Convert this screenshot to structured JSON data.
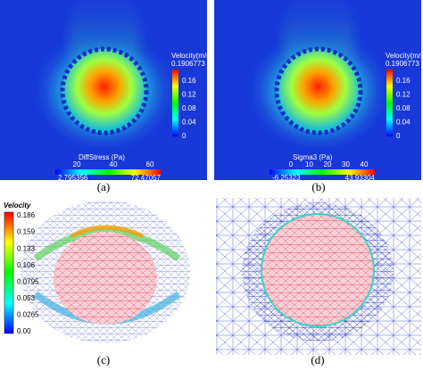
{
  "panels": [
    {
      "label": "(a)",
      "velocity_bar": {
        "title": "Velocity(m/s)",
        "max": "0.1906773",
        "ticks": [
          "0.16",
          "0.12",
          "0.08",
          "0.04",
          "0"
        ]
      },
      "stress_bar": {
        "title": "DiffStress (Pa)",
        "ticks": [
          "20",
          "40",
          "60"
        ],
        "min": "2.795356",
        "max": "72.47057"
      }
    },
    {
      "label": "(b)",
      "velocity_bar": {
        "title": "Velocity(m/s)",
        "max": "0.1906773",
        "ticks": [
          "0.16",
          "0.12",
          "0.08",
          "0.04",
          "0"
        ]
      },
      "stress_bar": {
        "title": "Sigma3 (Pa)",
        "ticks": [
          "0",
          "10",
          "20",
          "30",
          "40"
        ],
        "min": "-6.25323",
        "max": "43.93304"
      }
    },
    {
      "label": "(c)",
      "velocity_bar": {
        "title": "Velocity",
        "ticks": [
          "0.186",
          "0.159",
          "0.133",
          "0.106",
          "0.0795",
          "0.053",
          "0.0265",
          "0.00"
        ]
      }
    },
    {
      "label": "(d)"
    }
  ]
}
